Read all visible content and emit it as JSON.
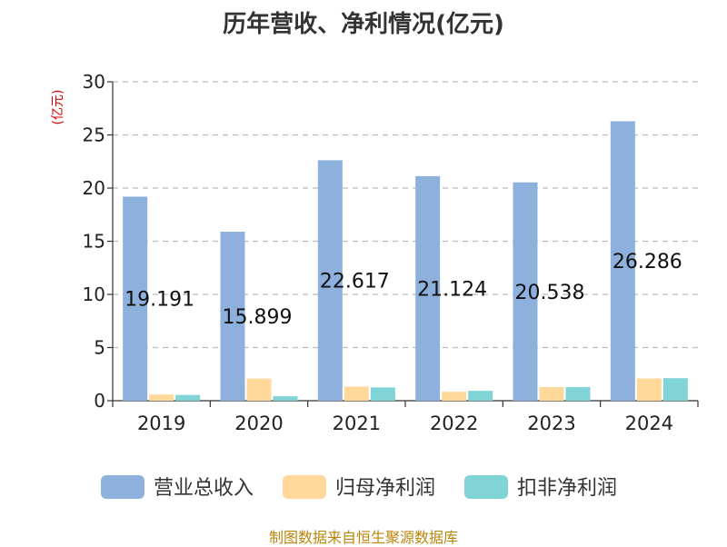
{
  "title": "历年营收、净利情况(亿元)",
  "y_unit_label": "(亿元)",
  "footer": "制图数据来自恒生聚源数据库",
  "chart_data": {
    "type": "bar",
    "title": "历年营收、净利情况(亿元)",
    "xlabel": "",
    "ylabel": "(亿元)",
    "categories": [
      "2019",
      "2020",
      "2021",
      "2022",
      "2023",
      "2024"
    ],
    "ylim": [
      0,
      30
    ],
    "yticks": [
      0,
      5,
      10,
      15,
      20,
      25,
      30
    ],
    "grid": true,
    "legend_position": "bottom",
    "series": [
      {
        "name": "营业总收入",
        "color": "#8eb0dc",
        "values": [
          19.191,
          15.899,
          22.617,
          21.124,
          20.538,
          26.286
        ],
        "data_labels": [
          "19.191",
          "15.899",
          "22.617",
          "21.124",
          "20.538",
          "26.286"
        ]
      },
      {
        "name": "归母净利润",
        "color": "#ffd89a",
        "values": [
          0.58,
          2.08,
          1.33,
          0.84,
          1.28,
          2.09
        ]
      },
      {
        "name": "扣非净利润",
        "color": "#80d4d6",
        "values": [
          0.54,
          0.42,
          1.25,
          0.93,
          1.28,
          2.12
        ]
      }
    ]
  }
}
